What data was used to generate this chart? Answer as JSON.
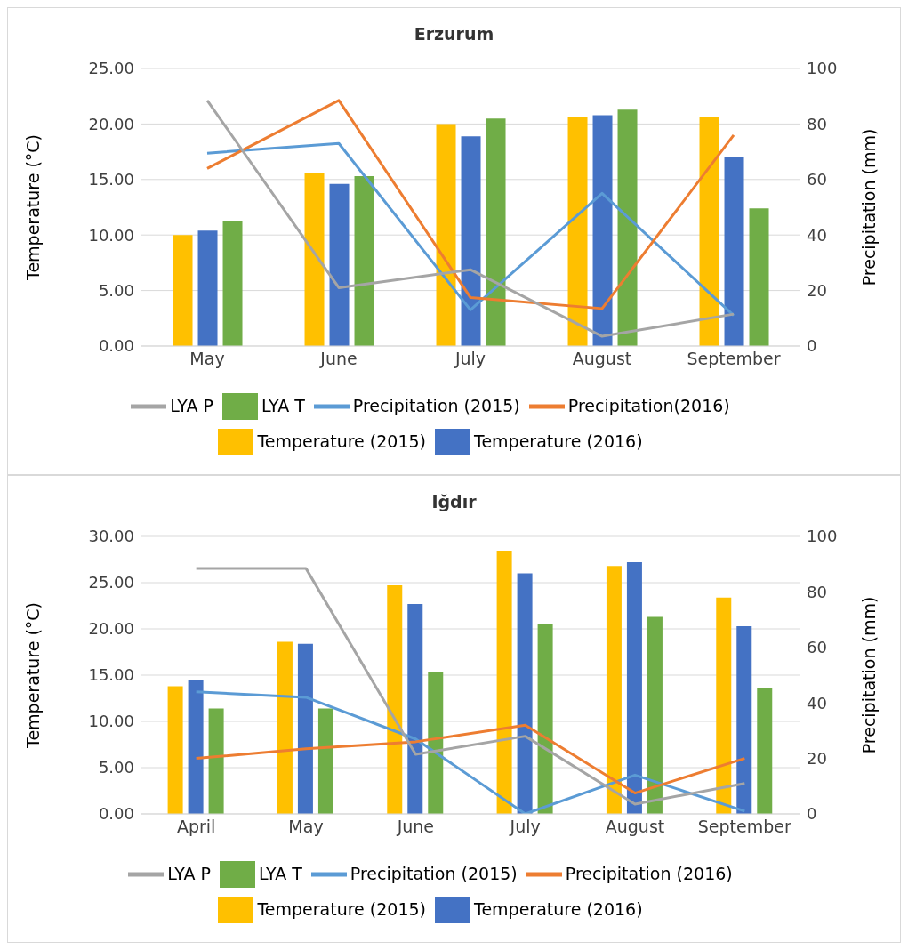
{
  "chart_data": [
    {
      "type": "bar",
      "title": "Erzurum",
      "categories": [
        "May",
        "June",
        "July",
        "August",
        "September"
      ],
      "ylabel": "Temperature (°C)",
      "y2label": "Precipitation (mm)",
      "ylim": [
        0,
        25
      ],
      "yticks": [
        {
          "value": 0,
          "label": "0.00"
        },
        {
          "value": 5,
          "label": "5.00"
        },
        {
          "value": 10,
          "label": "10.00"
        },
        {
          "value": 15,
          "label": "15.00"
        },
        {
          "value": 20,
          "label": "20.00"
        },
        {
          "value": 25,
          "label": "25.00"
        }
      ],
      "y2lim": [
        0,
        100
      ],
      "y2ticks": [
        0,
        20,
        40,
        60,
        80,
        100
      ],
      "grid": "y",
      "legend": "bottom",
      "series": [
        {
          "name": "Temperature (2015)",
          "color": "#ffc000",
          "values": [
            10.0,
            15.6,
            20.0,
            20.6,
            20.6
          ]
        },
        {
          "name": "Temperature (2016)",
          "color": "#4472c4",
          "values": [
            10.4,
            14.6,
            18.9,
            20.8,
            17.0
          ]
        },
        {
          "name": "LYA T",
          "color": "#70ad47",
          "values": [
            11.3,
            15.3,
            20.5,
            21.3,
            12.4
          ]
        },
        {
          "name": "Precipitation (2015)",
          "type": "line",
          "axis": "y2",
          "color": "#5b9bd5",
          "values": [
            69.5,
            73,
            13,
            55,
            11
          ]
        },
        {
          "name": "Precipitation(2016)",
          "type": "line",
          "axis": "y2",
          "color": "#ed7d31",
          "values": [
            64,
            88.5,
            17.5,
            13.5,
            76
          ]
        },
        {
          "name": "LYA P",
          "type": "line",
          "axis": "y2",
          "color": "#a5a5a5",
          "values": [
            88.5,
            21,
            27.5,
            3.5,
            11.5
          ]
        }
      ]
    },
    {
      "type": "bar",
      "title": "Iğdır",
      "categories": [
        "April",
        "May",
        "June",
        "July",
        "August",
        "September"
      ],
      "ylabel": "Temperature (°C)",
      "y2label": "Precipitation (mm)",
      "ylim": [
        0,
        30
      ],
      "yticks": [
        {
          "value": 0,
          "label": "0.00"
        },
        {
          "value": 5,
          "label": "5.00"
        },
        {
          "value": 10,
          "label": "10.00"
        },
        {
          "value": 15,
          "label": "15.00"
        },
        {
          "value": 20,
          "label": "20.00"
        },
        {
          "value": 25,
          "label": "25.00"
        },
        {
          "value": 30,
          "label": "30.00"
        }
      ],
      "y2lim": [
        0,
        100
      ],
      "y2ticks": [
        0,
        20,
        40,
        60,
        80,
        100
      ],
      "grid": "y",
      "legend": "bottom",
      "series": [
        {
          "name": "Temperature (2015)",
          "color": "#ffc000",
          "values": [
            13.8,
            18.6,
            24.7,
            28.4,
            26.8,
            23.4
          ]
        },
        {
          "name": "Temperature (2016)",
          "color": "#4472c4",
          "values": [
            14.5,
            18.4,
            22.7,
            26.0,
            27.2,
            20.3
          ]
        },
        {
          "name": "LYA T",
          "color": "#70ad47",
          "values": [
            11.4,
            11.4,
            15.3,
            20.5,
            21.3,
            13.6
          ]
        },
        {
          "name": "Precipitation (2015)",
          "type": "line",
          "axis": "y2",
          "color": "#5b9bd5",
          "values": [
            44,
            42,
            27,
            0,
            14,
            1
          ]
        },
        {
          "name": "Precipitation (2016)",
          "type": "line",
          "axis": "y2",
          "color": "#ed7d31",
          "values": [
            20,
            23.5,
            26,
            32,
            7.5,
            20
          ]
        },
        {
          "name": "LYA P",
          "type": "line",
          "axis": "y2",
          "color": "#a5a5a5",
          "values": [
            88.5,
            88.5,
            21.5,
            28,
            3.5,
            11
          ]
        }
      ]
    }
  ]
}
